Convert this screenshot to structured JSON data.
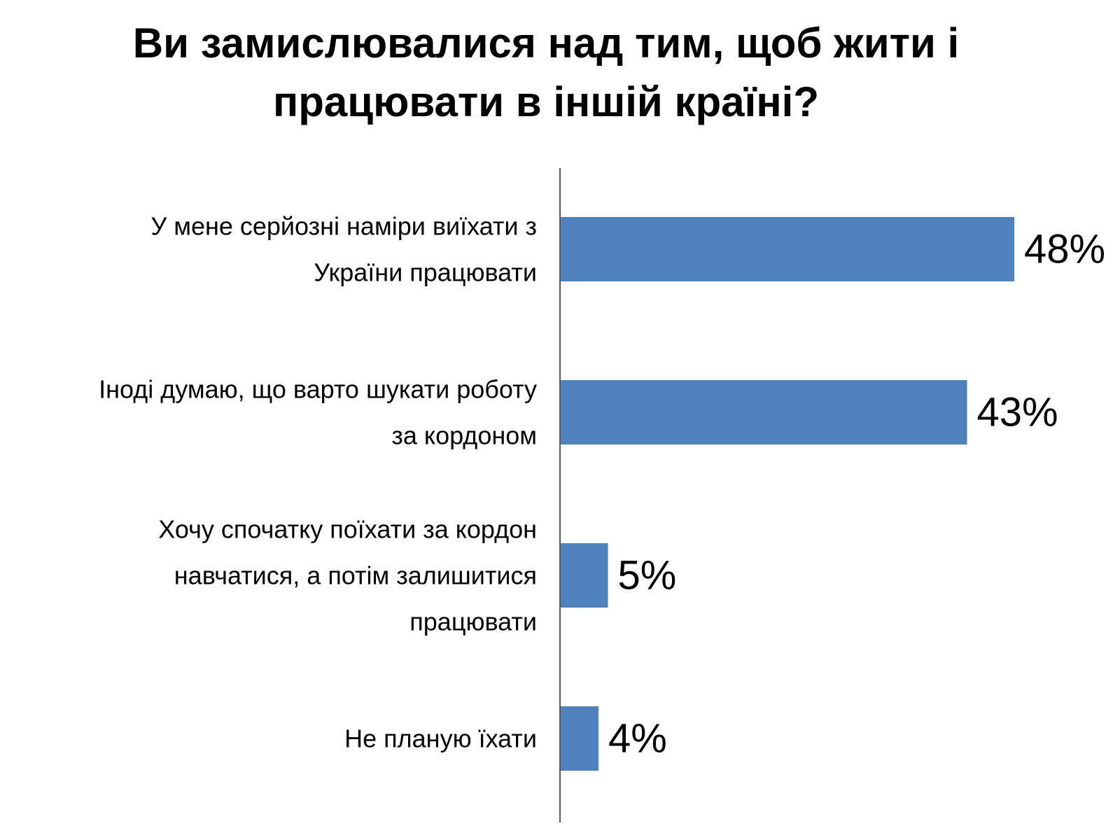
{
  "chart_data": {
    "type": "bar",
    "orientation": "horizontal",
    "title_lines": [
      "Ви замислювалися над тим, щоб жити і",
      "працювати в іншій країні?"
    ],
    "categories": [
      [
        "У мене серйозні наміри виїхати з",
        "України працювати"
      ],
      [
        "Іноді думаю, що варто шукати роботу",
        "за кордоном"
      ],
      [
        "Хочу спочатку поїхати за кордон",
        "навчатися, а потім залишитися",
        "працювати"
      ],
      [
        "Не планую їхати"
      ]
    ],
    "values": [
      48,
      43,
      5,
      4
    ],
    "value_labels": [
      "48%",
      "43%",
      "5%",
      "4%"
    ],
    "unit": "%",
    "xlim": [
      0,
      48
    ],
    "bar_color": "#4F81BD",
    "grid": false,
    "legend": "none"
  }
}
